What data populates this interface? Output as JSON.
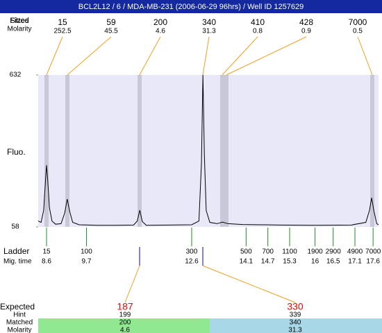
{
  "header": {
    "title": "BCL2L12 / 6 / MDA-MB-231 (2006-06-29 96hrs) / Well ID 1257629"
  },
  "top": {
    "fitted_label": "Fitted",
    "sizes_label": "Sizes",
    "molarity_label": "Molarity",
    "peaks": [
      {
        "size": 15,
        "molarity": 252.5
      },
      {
        "size": 59,
        "molarity": 45.5
      },
      {
        "size": 200,
        "molarity": 4.6
      },
      {
        "size": 340,
        "molarity": 31.3
      },
      {
        "size": 410,
        "molarity": 0.8
      },
      {
        "size": 428,
        "molarity": 0.9
      },
      {
        "size": 7000,
        "molarity": 0.5
      }
    ]
  },
  "chart_data": {
    "type": "line",
    "y_label": "Fluo.",
    "color": "#000000",
    "background": "#e8e8f8",
    "x": [
      8.37,
      8.45,
      8.52,
      8.57,
      8.6,
      8.63,
      8.68,
      8.75,
      8.85,
      9.0,
      9.1,
      9.17,
      9.24,
      9.32,
      9.5,
      10.0,
      10.5,
      11.0,
      11.1,
      11.17,
      11.24,
      11.35,
      12.0,
      12.6,
      12.8,
      12.87,
      12.91,
      12.95,
      13.0,
      13.1,
      13.3,
      13.45,
      13.6,
      14.0,
      14.5,
      15.0,
      16.0,
      17.0,
      17.4,
      17.5,
      17.56,
      17.62,
      17.7,
      17.75
    ],
    "y": [
      80,
      75,
      120,
      230,
      291,
      240,
      130,
      80,
      68,
      70,
      110,
      163,
      115,
      75,
      66,
      64,
      64,
      65,
      80,
      121,
      78,
      64,
      65,
      66,
      80,
      300,
      632,
      330,
      120,
      75,
      70,
      76,
      70,
      67,
      66,
      65,
      64,
      65,
      75,
      120,
      168,
      120,
      70,
      66
    ],
    "xlim": [
      8.37,
      17.75
    ],
    "ylim": [
      58,
      632
    ],
    "yticks": [
      58,
      632
    ]
  },
  "ladder": {
    "label": "Ladder",
    "time_label": "Mig. time",
    "sizes": [
      15,
      100,
      300,
      500,
      700,
      1100,
      1900,
      2900,
      4900,
      7000
    ],
    "times": [
      8.6,
      9.7,
      12.6,
      14.1,
      14.7,
      15.3,
      16,
      16.5,
      17.1,
      17.6
    ]
  },
  "expected": {
    "label": "Expected",
    "hint_label": "Hint",
    "matched_label": "Matched",
    "molarity_label": "Molarity",
    "columns": [
      {
        "expected": 187,
        "hint": 199,
        "matched": 200,
        "molarity": 4.6
      },
      {
        "expected": 330,
        "hint": 339,
        "matched": 340,
        "molarity": 31.3
      }
    ]
  }
}
